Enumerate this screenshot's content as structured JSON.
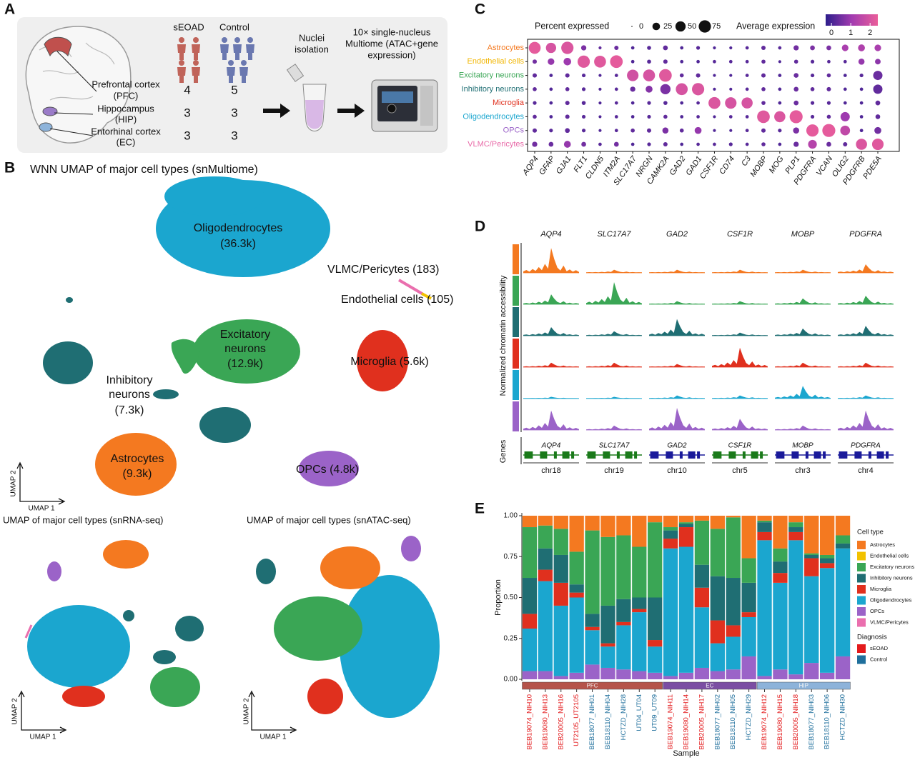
{
  "panel_labels": [
    "A",
    "B",
    "C",
    "D",
    "E"
  ],
  "panel_a": {
    "groups": [
      "sEOAD",
      "Control"
    ],
    "regions": [
      {
        "lines": [
          "Prefrontal cortex",
          "(PFC)"
        ],
        "seoad": 4,
        "control": 5
      },
      {
        "lines": [
          "Hippocampus",
          "(HIP)"
        ],
        "seoad": 3,
        "control": 3
      },
      {
        "lines": [
          "Entorhinal cortex",
          "(EC)"
        ],
        "seoad": 3,
        "control": 3
      }
    ],
    "step1": [
      "Nuclei",
      "isolation"
    ],
    "step2": [
      "10× single-nucleus",
      "Multiome (ATAC+gene",
      "expression)"
    ]
  },
  "panel_b": {
    "title": "WNN UMAP of major cell types (snMultiome)",
    "clusters": [
      {
        "lines": [
          "Oligodendrocytes",
          "(36.3k)"
        ]
      },
      {
        "lines": [
          "VLMC/Pericytes (183)"
        ]
      },
      {
        "lines": [
          "Endothelial cells (105)"
        ]
      },
      {
        "lines": [
          "Excitatory",
          "neurons",
          "(12.9k)"
        ]
      },
      {
        "lines": [
          "Microglia (5.6k)"
        ]
      },
      {
        "lines": [
          "Inhibitory",
          "neurons",
          "(7.3k)"
        ]
      },
      {
        "lines": [
          "Astrocytes",
          "(9.3k)"
        ]
      },
      {
        "lines": [
          "OPCs (4.8k)"
        ]
      }
    ],
    "axis_x": "UMAP 1",
    "axis_y": "UMAP 2",
    "rna_title": "UMAP of major cell types (snRNA-seq)",
    "atac_title": "UMAP of major cell types (snATAC-seq)"
  },
  "chart_data": [
    {
      "type": "dot",
      "size_legend_title": "Percent expressed",
      "size_legend": [
        0,
        25,
        50,
        75
      ],
      "color_legend_title": "Average expression",
      "color_ticks": [
        0,
        1,
        2
      ],
      "color_range": [
        -0.3,
        2.4
      ],
      "colors": [
        "#2d1e8c",
        "#a23bb0",
        "#ea5e9a"
      ],
      "genes": [
        "AQP4",
        "GFAP",
        "GJA1",
        "FLT1",
        "CLDN5",
        "ITM2A",
        "SLC17A7",
        "NRGN",
        "CAMK2A",
        "GAD2",
        "GAD1",
        "CSF1R",
        "CD74",
        "C3",
        "MOBP",
        "MOG",
        "PLP1",
        "PDGFRA",
        "VCAN",
        "OLIG2",
        "PDGFRB",
        "PDE5A"
      ],
      "series": [
        {
          "name": "Astrocytes",
          "color": "#f47920",
          "percent": [
            70,
            50,
            75,
            10,
            2,
            6,
            3,
            5,
            8,
            3,
            4,
            2,
            2,
            3,
            6,
            3,
            10,
            8,
            8,
            18,
            20,
            18
          ],
          "expression": [
            2.3,
            2.0,
            2.1,
            0.6,
            0.3,
            0.4,
            0.1,
            0.2,
            0.3,
            0.1,
            0.2,
            0.1,
            0.1,
            0.2,
            0.3,
            0.2,
            0.5,
            0.6,
            0.6,
            1.2,
            1.3,
            1.2
          ]
        },
        {
          "name": "Endothelial cells",
          "color": "#f2b705",
          "percent": [
            6,
            18,
            25,
            75,
            70,
            80,
            3,
            5,
            6,
            3,
            3,
            3,
            3,
            3,
            5,
            2,
            5,
            4,
            3,
            3,
            15,
            12
          ],
          "expression": [
            0.5,
            0.9,
            1.0,
            2.2,
            2.2,
            2.3,
            0.1,
            0.2,
            0.3,
            0.1,
            0.1,
            0.2,
            0.2,
            0.2,
            0.3,
            0.1,
            0.3,
            0.2,
            0.2,
            0.2,
            0.9,
            0.8
          ]
        },
        {
          "name": "Excitatory neurons",
          "color": "#3aa655",
          "percent": [
            6,
            3,
            6,
            4,
            2,
            3,
            65,
            70,
            80,
            5,
            6,
            2,
            2,
            3,
            6,
            3,
            8,
            4,
            5,
            3,
            4,
            40
          ],
          "expression": [
            0.3,
            0.1,
            0.3,
            0.2,
            0.1,
            0.2,
            1.9,
            2.0,
            2.2,
            0.3,
            0.3,
            0.1,
            0.1,
            0.2,
            0.3,
            0.1,
            0.4,
            0.2,
            0.3,
            0.1,
            0.2,
            0.4
          ]
        },
        {
          "name": "Inhibitory neurons",
          "color": "#1f6e73",
          "percent": [
            5,
            3,
            5,
            4,
            2,
            3,
            10,
            20,
            50,
            70,
            75,
            2,
            2,
            3,
            5,
            3,
            8,
            5,
            6,
            3,
            3,
            40
          ],
          "expression": [
            0.3,
            0.1,
            0.3,
            0.2,
            0.1,
            0.2,
            0.4,
            0.7,
            0.6,
            2.0,
            2.1,
            0.1,
            0.1,
            0.2,
            0.3,
            0.1,
            0.4,
            0.3,
            0.3,
            0.1,
            0.1,
            0.3
          ]
        },
        {
          "name": "Microglia",
          "color": "#e0301e",
          "percent": [
            4,
            3,
            6,
            5,
            2,
            3,
            3,
            4,
            5,
            3,
            3,
            70,
            65,
            60,
            5,
            3,
            8,
            4,
            4,
            3,
            3,
            8
          ],
          "expression": [
            0.2,
            0.1,
            0.3,
            0.2,
            0.1,
            0.2,
            0.1,
            0.2,
            0.2,
            0.1,
            0.2,
            2.1,
            2.0,
            2.0,
            0.3,
            0.1,
            0.4,
            0.2,
            0.2,
            0.1,
            0.1,
            0.3
          ]
        },
        {
          "name": "Oligodendrocytes",
          "color": "#1ba6cf",
          "percent": [
            5,
            3,
            6,
            4,
            2,
            3,
            3,
            4,
            5,
            3,
            3,
            2,
            3,
            3,
            80,
            60,
            85,
            4,
            5,
            40,
            3,
            8
          ],
          "expression": [
            0.3,
            0.1,
            0.3,
            0.2,
            0.1,
            0.2,
            0.1,
            0.2,
            0.3,
            0.1,
            0.2,
            0.1,
            0.2,
            0.2,
            2.2,
            2.1,
            2.3,
            0.2,
            0.3,
            1.0,
            0.1,
            0.3
          ]
        },
        {
          "name": "OPCs",
          "color": "#9b63c8",
          "percent": [
            6,
            4,
            8,
            4,
            2,
            3,
            5,
            6,
            15,
            5,
            20,
            2,
            2,
            3,
            6,
            4,
            15,
            75,
            85,
            45,
            3,
            20
          ],
          "expression": [
            0.3,
            0.2,
            0.3,
            0.2,
            0.1,
            0.2,
            0.3,
            0.3,
            0.6,
            0.3,
            0.9,
            0.1,
            0.1,
            0.2,
            0.3,
            0.2,
            0.6,
            2.3,
            2.3,
            1.6,
            0.1,
            0.5
          ]
        },
        {
          "name": "VLMC/Pericytes",
          "color": "#e86aa8",
          "percent": [
            10,
            8,
            20,
            8,
            3,
            8,
            3,
            4,
            6,
            3,
            3,
            3,
            4,
            3,
            5,
            3,
            10,
            35,
            8,
            6,
            60,
            65
          ],
          "expression": [
            0.5,
            0.4,
            0.9,
            0.5,
            0.2,
            0.5,
            0.1,
            0.2,
            0.3,
            0.1,
            0.2,
            0.2,
            0.2,
            0.2,
            0.3,
            0.1,
            0.4,
            1.4,
            0.4,
            0.3,
            2.1,
            2.2
          ]
        }
      ]
    },
    {
      "type": "track",
      "ylabel": "Normalized chromatin accessibility",
      "genes_label": "Genes",
      "genes": [
        "AQP4",
        "SLC17A7",
        "GAD2",
        "CSF1R",
        "MOBP",
        "PDGFRA"
      ],
      "chromosomes": [
        "chr18",
        "chr19",
        "chr10",
        "chr5",
        "chr3",
        "chr4"
      ],
      "gene_colors": [
        "#1a7a1a",
        "#1a7a1a",
        "#1a1a9a",
        "#1a7a1a",
        "#1a1a9a",
        "#1a1a9a"
      ],
      "series": [
        {
          "color": "#f47920",
          "values": [
            0.9,
            0.1,
            0.1,
            0.1,
            0.1,
            0.3
          ]
        },
        {
          "color": "#3aa655",
          "values": [
            0.35,
            0.8,
            0.1,
            0.1,
            0.2,
            0.3
          ]
        },
        {
          "color": "#1f6e73",
          "values": [
            0.3,
            0.15,
            0.6,
            0.1,
            0.25,
            0.35
          ]
        },
        {
          "color": "#e0301e",
          "values": [
            0.15,
            0.15,
            0.1,
            0.7,
            0.15,
            0.15
          ]
        },
        {
          "color": "#1ba6cf",
          "values": [
            0.05,
            0.05,
            0.1,
            0.1,
            0.45,
            0.1
          ]
        },
        {
          "color": "#9b63c8",
          "values": [
            0.7,
            0.15,
            0.8,
            0.4,
            0.15,
            0.7
          ]
        }
      ]
    },
    {
      "type": "bar",
      "stacked": true,
      "ylabel": "Proportion",
      "xlabel": "Sample",
      "ylim": [
        0,
        1
      ],
      "yticks": [
        {
          "value": 0,
          "label": "0.00"
        },
        {
          "value": 0.25,
          "label": "0.25"
        },
        {
          "value": 0.5,
          "label": "0.50"
        },
        {
          "value": 0.75,
          "label": "0.75"
        },
        {
          "value": 1,
          "label": "1.00"
        }
      ],
      "legend_title": "Cell type",
      "categories": [
        "BEB19074_NIH10",
        "BEB19080_NIH13",
        "BEB20005_NIH16",
        "UT2105_UT2105",
        "BEB18077_NIH01",
        "BEB18110_NIH04",
        "HCTZD_NIH28",
        "UT04_UT04",
        "UT09_UT09",
        "BEB19074_NIH11",
        "BEB19080_NIH14",
        "BEB20005_NIH17",
        "BEB18077_NIH02",
        "BEB18110_NIH05",
        "HCTZD_NIH29",
        "BEB19074_NIH12",
        "BEB19080_NIH15",
        "BEB20005_NIH18",
        "BEB18077_NIH03",
        "BEB18110_NIH06",
        "HCTZD_NIH30"
      ],
      "region": [
        "PFC",
        "PFC",
        "PFC",
        "PFC",
        "PFC",
        "PFC",
        "PFC",
        "PFC",
        "PFC",
        "EC",
        "EC",
        "EC",
        "EC",
        "EC",
        "EC",
        "HIP",
        "HIP",
        "HIP",
        "HIP",
        "HIP",
        "HIP"
      ],
      "regions": [
        {
          "name": "PFC",
          "color": "#b5544a"
        },
        {
          "name": "EC",
          "color": "#7b4ea3"
        },
        {
          "name": "HIP",
          "color": "#8db3da"
        }
      ],
      "diagnosis": [
        "sEOAD",
        "sEOAD",
        "sEOAD",
        "sEOAD",
        "Control",
        "Control",
        "Control",
        "Control",
        "Control",
        "sEOAD",
        "sEOAD",
        "sEOAD",
        "Control",
        "Control",
        "Control",
        "sEOAD",
        "sEOAD",
        "sEOAD",
        "Control",
        "Control",
        "Control"
      ],
      "diagnosis_title": "Diagnosis",
      "diagnosis_legend": [
        {
          "name": "sEOAD",
          "color": "#e31a1c"
        },
        {
          "name": "Control",
          "color": "#1f6f9c"
        }
      ],
      "series": [
        {
          "name": "Astrocytes",
          "color": "#f47920",
          "values": [
            0.07,
            0.06,
            0.08,
            0.22,
            0.09,
            0.13,
            0.12,
            0.19,
            0.04,
            0.07,
            0.04,
            0.03,
            0.08,
            0.01,
            0.26,
            0.03,
            0.2,
            0.04,
            0.23,
            0.24,
            0.12
          ]
        },
        {
          "name": "Endothelial cells",
          "color": "#f2c200",
          "values": [
            0,
            0,
            0,
            0,
            0,
            0,
            0,
            0,
            0,
            0,
            0,
            0,
            0,
            0,
            0,
            0,
            0,
            0,
            0,
            0,
            0
          ]
        },
        {
          "name": "Excitatory neurons",
          "color": "#3aa655",
          "values": [
            0.31,
            0.14,
            0.16,
            0.2,
            0.51,
            0.42,
            0.39,
            0.31,
            0.46,
            0.02,
            0.01,
            0.27,
            0.29,
            0.37,
            0.15,
            0.01,
            0.08,
            0.03,
            0.01,
            0.02,
            0.05
          ]
        },
        {
          "name": "Inhibitory neurons",
          "color": "#1f6e73",
          "values": [
            0.22,
            0.13,
            0.17,
            0.05,
            0.08,
            0.23,
            0.14,
            0.07,
            0.26,
            0.05,
            0.02,
            0.14,
            0.27,
            0.29,
            0.18,
            0.06,
            0.07,
            0.03,
            0.02,
            0.03,
            0.03
          ]
        },
        {
          "name": "Microglia",
          "color": "#e0301e",
          "values": [
            0.09,
            0.07,
            0.14,
            0.03,
            0.02,
            0.02,
            0.02,
            0.02,
            0.04,
            0.06,
            0.12,
            0.12,
            0.14,
            0.07,
            0.03,
            0.05,
            0.06,
            0.05,
            0.11,
            0.03,
            0
          ]
        },
        {
          "name": "Oligodendrocytes",
          "color": "#1ba6cf",
          "values": [
            0.26,
            0.55,
            0.43,
            0.46,
            0.21,
            0.13,
            0.27,
            0.36,
            0.16,
            0.78,
            0.77,
            0.37,
            0.17,
            0.2,
            0.24,
            0.83,
            0.53,
            0.82,
            0.53,
            0.64,
            0.66
          ]
        },
        {
          "name": "OPCs",
          "color": "#9b63c8",
          "values": [
            0.05,
            0.05,
            0.02,
            0.04,
            0.09,
            0.07,
            0.06,
            0.05,
            0.04,
            0.02,
            0.04,
            0.07,
            0.05,
            0.06,
            0.14,
            0.02,
            0.06,
            0.03,
            0.1,
            0.04,
            0.14
          ]
        },
        {
          "name": "VLMC/Pericytes",
          "color": "#ea6fae",
          "values": [
            0,
            0,
            0,
            0,
            0,
            0,
            0,
            0,
            0,
            0,
            0,
            0,
            0,
            0,
            0,
            0,
            0,
            0,
            0,
            0,
            0
          ]
        }
      ]
    }
  ]
}
